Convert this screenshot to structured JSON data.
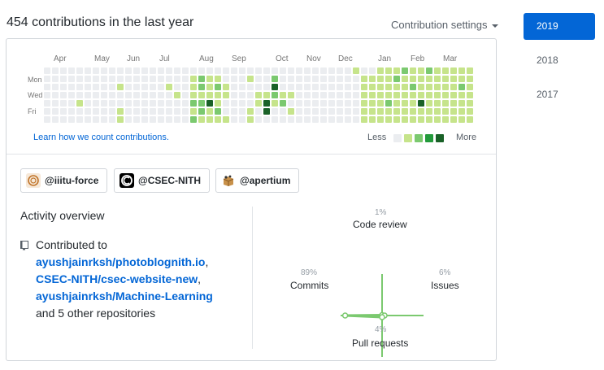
{
  "header": {
    "title": "454 contributions in the last year",
    "settings_label": "Contribution settings"
  },
  "calendar": {
    "months": [
      "Apr",
      "May",
      "Jun",
      "Jul",
      "Aug",
      "Sep",
      "Oct",
      "Nov",
      "Dec",
      "Jan",
      "Feb",
      "Mar"
    ],
    "days": [
      "Mon",
      "Wed",
      "Fri"
    ],
    "learn_link": "Learn how we count contributions.",
    "legend_less": "Less",
    "legend_more": "More",
    "colors": [
      "#ebedf0",
      "#c6e48b",
      "#7bc96f",
      "#239a3b",
      "#196127"
    ],
    "weeks": 53,
    "levels": {
      "4-4": 1,
      "9-2": 1,
      "9-5": 1,
      "9-6": 1,
      "15-2": 1,
      "16-3": 1,
      "18-1": 1,
      "18-2": 1,
      "18-3": 1,
      "18-4": 2,
      "18-5": 1,
      "18-6": 2,
      "19-1": 2,
      "19-2": 2,
      "19-3": 1,
      "19-4": 2,
      "19-5": 2,
      "19-6": 1,
      "20-1": 1,
      "20-2": 1,
      "20-3": 1,
      "20-4": 4,
      "20-5": 1,
      "20-6": 1,
      "21-1": 1,
      "21-2": 2,
      "21-3": 1,
      "21-4": 1,
      "21-5": 2,
      "21-6": 1,
      "22-2": 1,
      "22-3": 1,
      "22-6": 1,
      "25-1": 1,
      "25-5": 1,
      "25-6": 1,
      "26-3": 1,
      "26-4": 1,
      "27-3": 1,
      "27-4": 4,
      "27-5": 4,
      "28-1": 2,
      "28-2": 4,
      "28-3": 2,
      "28-4": 1,
      "29-3": 1,
      "29-4": 2,
      "30-3": 1,
      "30-5": 1,
      "38-0": 1,
      "39-1": 1,
      "39-2": 1,
      "39-3": 1,
      "39-4": 1,
      "39-5": 1,
      "39-6": 1,
      "40-1": 1,
      "40-2": 1,
      "40-3": 1,
      "40-4": 1,
      "40-5": 1,
      "40-6": 1,
      "41-0": 1,
      "41-1": 1,
      "41-2": 1,
      "41-3": 1,
      "41-4": 1,
      "41-5": 1,
      "41-6": 1,
      "42-0": 1,
      "42-1": 1,
      "42-2": 1,
      "42-3": 1,
      "42-4": 2,
      "42-5": 1,
      "42-6": 1,
      "43-0": 1,
      "43-1": 2,
      "43-2": 1,
      "43-3": 1,
      "43-4": 1,
      "43-5": 1,
      "43-6": 1,
      "44-0": 2,
      "44-1": 1,
      "44-2": 1,
      "44-3": 1,
      "44-4": 1,
      "44-5": 1,
      "44-6": 1,
      "45-0": 1,
      "45-1": 1,
      "45-2": 2,
      "45-3": 1,
      "45-4": 1,
      "45-5": 1,
      "45-6": 1,
      "46-0": 1,
      "46-1": 1,
      "46-2": 1,
      "46-3": 1,
      "46-4": 4,
      "46-5": 1,
      "46-6": 1,
      "47-0": 2,
      "47-1": 1,
      "47-2": 1,
      "47-3": 1,
      "47-4": 1,
      "47-5": 1,
      "47-6": 1,
      "48-0": 1,
      "48-1": 1,
      "48-2": 1,
      "48-3": 1,
      "48-4": 1,
      "48-5": 1,
      "48-6": 1,
      "49-0": 1,
      "49-1": 1,
      "49-2": 1,
      "49-3": 1,
      "49-4": 1,
      "49-5": 1,
      "49-6": 1,
      "50-0": 1,
      "50-1": 1,
      "50-2": 1,
      "50-3": 1,
      "50-4": 1,
      "50-5": 1,
      "50-6": 1,
      "51-0": 1,
      "51-1": 1,
      "51-2": 2,
      "51-3": 1,
      "51-4": 1,
      "51-5": 1,
      "51-6": 1,
      "52-0": 1,
      "52-1": 1,
      "52-2": 1,
      "52-3": 1,
      "52-4": 1,
      "52-5": 1,
      "52-6": 1
    }
  },
  "orgs": [
    {
      "label": "@iiitu-force",
      "icon": "iiitu-force-avatar-icon"
    },
    {
      "label": "@CSEC-NITH",
      "icon": "csec-nith-avatar-icon"
    },
    {
      "label": "@apertium",
      "icon": "apertium-avatar-icon"
    }
  ],
  "activity": {
    "title": "Activity overview",
    "contributed_prefix": "Contributed to",
    "repos": [
      "ayushjainrksh/photoblognith.io",
      "CSEC-NITH/csec-website-new",
      "ayushjainrksh/Machine-Learning"
    ],
    "separators": [
      ",",
      ","
    ],
    "others": "and 5 other repositories"
  },
  "radar": {
    "code_review": {
      "pct": "1%",
      "label": "Code review",
      "value": 1
    },
    "commits": {
      "pct": "89%",
      "label": "Commits",
      "value": 89
    },
    "issues": {
      "pct": "6%",
      "label": "Issues",
      "value": 6
    },
    "pull_requests": {
      "pct": "4%",
      "label": "Pull requests",
      "value": 4
    },
    "color": "#7bc96f"
  },
  "years": [
    "2019",
    "2018",
    "2017"
  ],
  "active_year": "2019"
}
